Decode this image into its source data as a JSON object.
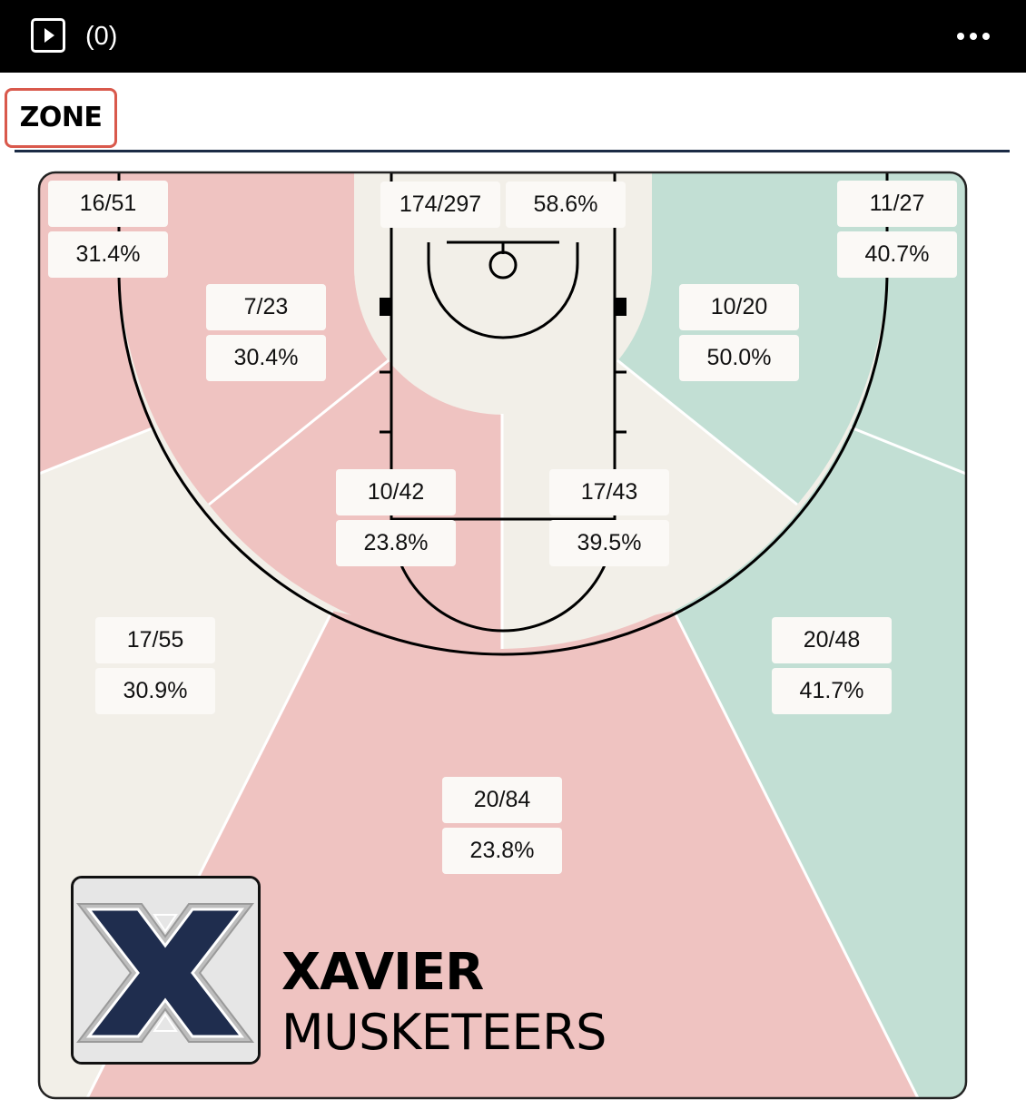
{
  "topbar": {
    "play_icon": "play-icon",
    "count": "(0)",
    "more_icon": "more-dots-icon"
  },
  "tab": {
    "label": "ZONE"
  },
  "colors": {
    "cold": "#efc3c1",
    "neutral": "#f2efe8",
    "hot": "#c2dfd4",
    "rule": "#1b2b45",
    "tab_border": "#d9594c",
    "logo_navy": "#1f2d4e"
  },
  "zones": [
    {
      "id": "left-corner-3",
      "made_attempts": "16/51",
      "pct": "31.4%",
      "level": "cold"
    },
    {
      "id": "right-corner-3",
      "made_attempts": "11/27",
      "pct": "40.7%",
      "level": "hot"
    },
    {
      "id": "left-baseline-mid",
      "made_attempts": "7/23",
      "pct": "30.4%",
      "level": "cold"
    },
    {
      "id": "right-baseline-mid",
      "made_attempts": "10/20",
      "pct": "50.0%",
      "level": "hot"
    },
    {
      "id": "left-elbow-mid",
      "made_attempts": "10/42",
      "pct": "23.8%",
      "level": "cold"
    },
    {
      "id": "right-elbow-mid",
      "made_attempts": "17/43",
      "pct": "39.5%",
      "level": "neutral"
    },
    {
      "id": "left-wing-3",
      "made_attempts": "17/55",
      "pct": "30.9%",
      "level": "neutral"
    },
    {
      "id": "right-wing-3",
      "made_attempts": "20/48",
      "pct": "41.7%",
      "level": "hot"
    },
    {
      "id": "top-key-3",
      "made_attempts": "20/84",
      "pct": "23.8%",
      "level": "cold"
    }
  ],
  "restricted": {
    "made_attempts": "174/297",
    "pct": "58.6%",
    "level": "neutral"
  },
  "team": {
    "logo_icon": "xavier-x-logo-icon",
    "logo_text": "X",
    "name": "XAVIER",
    "nickname": "MUSKETEERS"
  }
}
